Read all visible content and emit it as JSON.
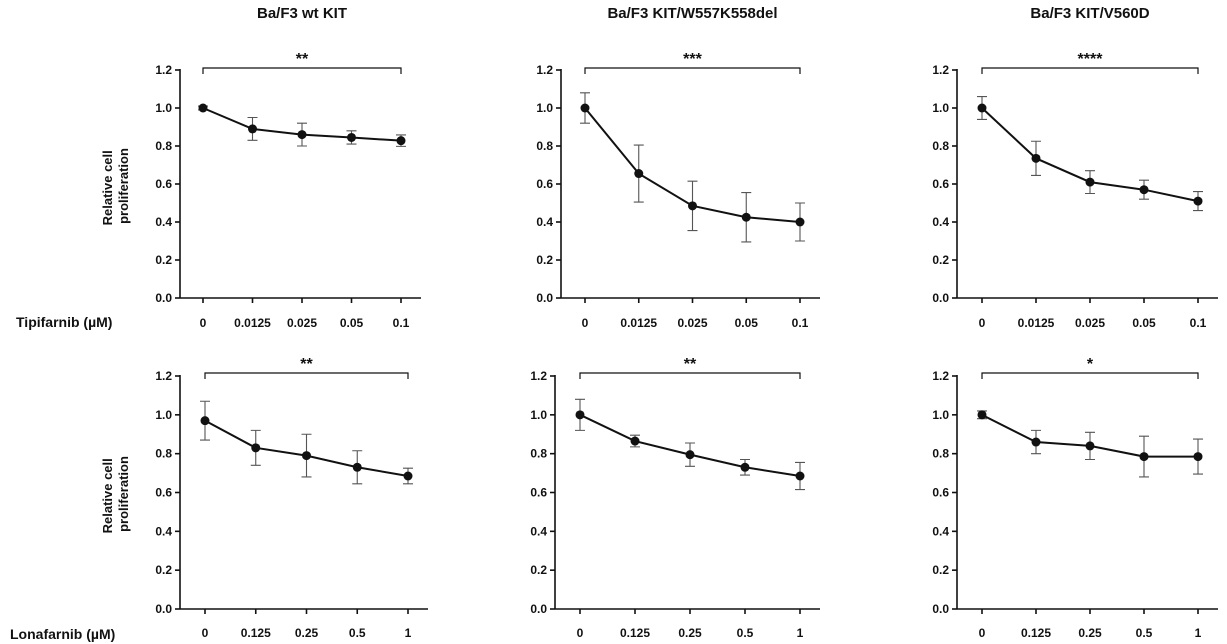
{
  "rows": [
    {
      "ylabel_lines": [
        "Relative cell",
        "proliferation"
      ],
      "xlabel": "Tipifarnib (µM)"
    },
    {
      "ylabel_lines": [
        "Relative cell",
        "proliferation"
      ],
      "xlabel": "Lonafarnib (µM)"
    }
  ],
  "chart_data": [
    {
      "type": "line",
      "title": "Ba/F3 wt KIT",
      "xlabel": "Tipifarnib (µM)",
      "ylabel": "Relative cell proliferation",
      "categories": [
        "0",
        "0.0125",
        "0.025",
        "0.05",
        "0.1"
      ],
      "values": [
        1.0,
        0.89,
        0.86,
        0.845,
        0.828
      ],
      "errors": [
        0.01,
        0.06,
        0.06,
        0.035,
        0.03
      ],
      "ylim": [
        0,
        1.2
      ],
      "yticks": [
        "0.0",
        "0.2",
        "0.4",
        "0.6",
        "0.8",
        "1.0",
        "1.2"
      ],
      "significance": "**",
      "grid": false
    },
    {
      "type": "line",
      "title": "Ba/F3 KIT/W557K558del",
      "xlabel": "Tipifarnib (µM)",
      "ylabel": "Relative cell proliferation",
      "categories": [
        "0",
        "0.0125",
        "0.025",
        "0.05",
        "0.1"
      ],
      "values": [
        1.0,
        0.655,
        0.485,
        0.425,
        0.4
      ],
      "errors": [
        0.08,
        0.15,
        0.13,
        0.13,
        0.1
      ],
      "ylim": [
        0,
        1.2
      ],
      "yticks": [
        "0.0",
        "0.2",
        "0.4",
        "0.6",
        "0.8",
        "1.0",
        "1.2"
      ],
      "significance": "***",
      "grid": false
    },
    {
      "type": "line",
      "title": "Ba/F3 KIT/V560D",
      "xlabel": "Tipifarnib (µM)",
      "ylabel": "Relative cell proliferation",
      "categories": [
        "0",
        "0.0125",
        "0.025",
        "0.05",
        "0.1"
      ],
      "values": [
        1.0,
        0.735,
        0.61,
        0.57,
        0.51
      ],
      "errors": [
        0.06,
        0.09,
        0.06,
        0.05,
        0.05
      ],
      "ylim": [
        0,
        1.2
      ],
      "yticks": [
        "0.0",
        "0.2",
        "0.4",
        "0.6",
        "0.8",
        "1.0",
        "1.2"
      ],
      "significance": "****",
      "grid": false
    },
    {
      "type": "line",
      "title": "",
      "xlabel": "Lonafarnib (µM)",
      "ylabel": "Relative cell proliferation",
      "categories": [
        "0",
        "0.125",
        "0.25",
        "0.5",
        "1"
      ],
      "values": [
        0.97,
        0.83,
        0.79,
        0.73,
        0.685
      ],
      "errors": [
        0.1,
        0.09,
        0.11,
        0.085,
        0.04
      ],
      "ylim": [
        0,
        1.2
      ],
      "yticks": [
        "0.0",
        "0.2",
        "0.4",
        "0.6",
        "0.8",
        "1.0",
        "1.2"
      ],
      "significance": "**",
      "grid": false
    },
    {
      "type": "line",
      "title": "",
      "xlabel": "Lonafarnib (µM)",
      "ylabel": "Relative cell proliferation",
      "categories": [
        "0",
        "0.125",
        "0.25",
        "0.5",
        "1"
      ],
      "values": [
        1.0,
        0.865,
        0.795,
        0.73,
        0.685
      ],
      "errors": [
        0.08,
        0.03,
        0.06,
        0.04,
        0.07
      ],
      "ylim": [
        0,
        1.2
      ],
      "yticks": [
        "0.0",
        "0.2",
        "0.4",
        "0.6",
        "0.8",
        "1.0",
        "1.2"
      ],
      "significance": "**",
      "grid": false
    },
    {
      "type": "line",
      "title": "",
      "xlabel": "Lonafarnib (µM)",
      "ylabel": "Relative cell proliferation",
      "categories": [
        "0",
        "0.125",
        "0.25",
        "0.5",
        "1"
      ],
      "values": [
        1.0,
        0.86,
        0.84,
        0.785,
        0.785
      ],
      "errors": [
        0.02,
        0.06,
        0.07,
        0.105,
        0.09
      ],
      "ylim": [
        0,
        1.2
      ],
      "yticks": [
        "0.0",
        "0.2",
        "0.4",
        "0.6",
        "0.8",
        "1.0",
        "1.2"
      ],
      "significance": "*",
      "grid": false
    }
  ]
}
